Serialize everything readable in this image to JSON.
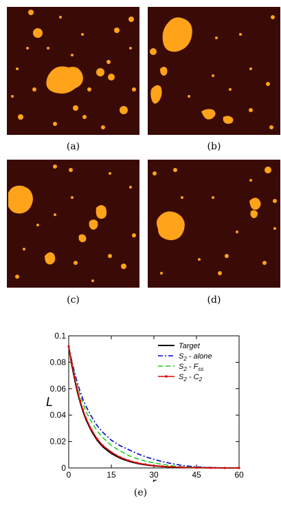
{
  "figure": {
    "panels": [
      {
        "label": "(a)"
      },
      {
        "label": "(b)"
      },
      {
        "label": "(c)"
      },
      {
        "label": "(d)"
      }
    ],
    "panel_colors": {
      "matrix": "#3a0a06",
      "phase": "#ffa31a"
    },
    "chart_caption": "(e)"
  },
  "chart_data": {
    "type": "line",
    "xlabel": "r",
    "ylabel": "L",
    "xlim": [
      0,
      60
    ],
    "ylim": [
      0,
      0.1
    ],
    "x_ticks": [
      "0",
      "15",
      "30",
      "45",
      "60"
    ],
    "y_ticks": [
      "0",
      "0.02",
      "0.04",
      "0.06",
      "0.08",
      "0.1"
    ],
    "legend_position": "top-right",
    "x": [
      0,
      1,
      2,
      3,
      4,
      5,
      6,
      8,
      10,
      12,
      15,
      18,
      21,
      24,
      27,
      30,
      33,
      36,
      40,
      45,
      50,
      55,
      60
    ],
    "series": [
      {
        "name": "Target",
        "color": "#000000",
        "dash": "solid",
        "marker": false,
        "values": [
          0.092,
          0.079,
          0.068,
          0.058,
          0.05,
          0.043,
          0.037,
          0.028,
          0.021,
          0.016,
          0.011,
          0.0075,
          0.0052,
          0.0035,
          0.0024,
          0.0016,
          0.0011,
          0.0007,
          0.0004,
          0.0002,
          0.0001,
          0.0,
          0.0
        ]
      },
      {
        "name": "S2 - alone",
        "color": "#0000cc",
        "dash": "dashdot",
        "marker": false,
        "values": [
          0.092,
          0.082,
          0.073,
          0.065,
          0.058,
          0.052,
          0.047,
          0.039,
          0.032,
          0.027,
          0.021,
          0.017,
          0.014,
          0.011,
          0.0085,
          0.0065,
          0.0048,
          0.0034,
          0.0019,
          0.0008,
          0.0003,
          0.0001,
          0.0
        ]
      },
      {
        "name": "S2 - Fss",
        "color": "#22cc22",
        "dash": "dash",
        "marker": false,
        "values": [
          0.092,
          0.081,
          0.071,
          0.063,
          0.055,
          0.049,
          0.043,
          0.035,
          0.028,
          0.023,
          0.017,
          0.013,
          0.0095,
          0.007,
          0.0052,
          0.0038,
          0.0027,
          0.0018,
          0.0009,
          0.0004,
          0.0001,
          0.0,
          0.0
        ]
      },
      {
        "name": "S2 - C2",
        "color": "#dd0000",
        "dash": "solid",
        "marker": true,
        "values": [
          0.092,
          0.08,
          0.069,
          0.059,
          0.051,
          0.044,
          0.038,
          0.029,
          0.022,
          0.017,
          0.012,
          0.0082,
          0.0057,
          0.0039,
          0.0027,
          0.0018,
          0.0012,
          0.0008,
          0.0004,
          0.0002,
          0.0001,
          0.0,
          0.0
        ]
      }
    ],
    "legend": [
      {
        "main": "Target",
        "sub": "",
        "tail": ""
      },
      {
        "main": "S",
        "sub": "2",
        "tail": " - alone"
      },
      {
        "main": "S",
        "sub": "2",
        "tail": " - F",
        "sub2": "ss"
      },
      {
        "main": "S",
        "sub": "2",
        "tail": " - C",
        "sub2": "2"
      }
    ]
  }
}
